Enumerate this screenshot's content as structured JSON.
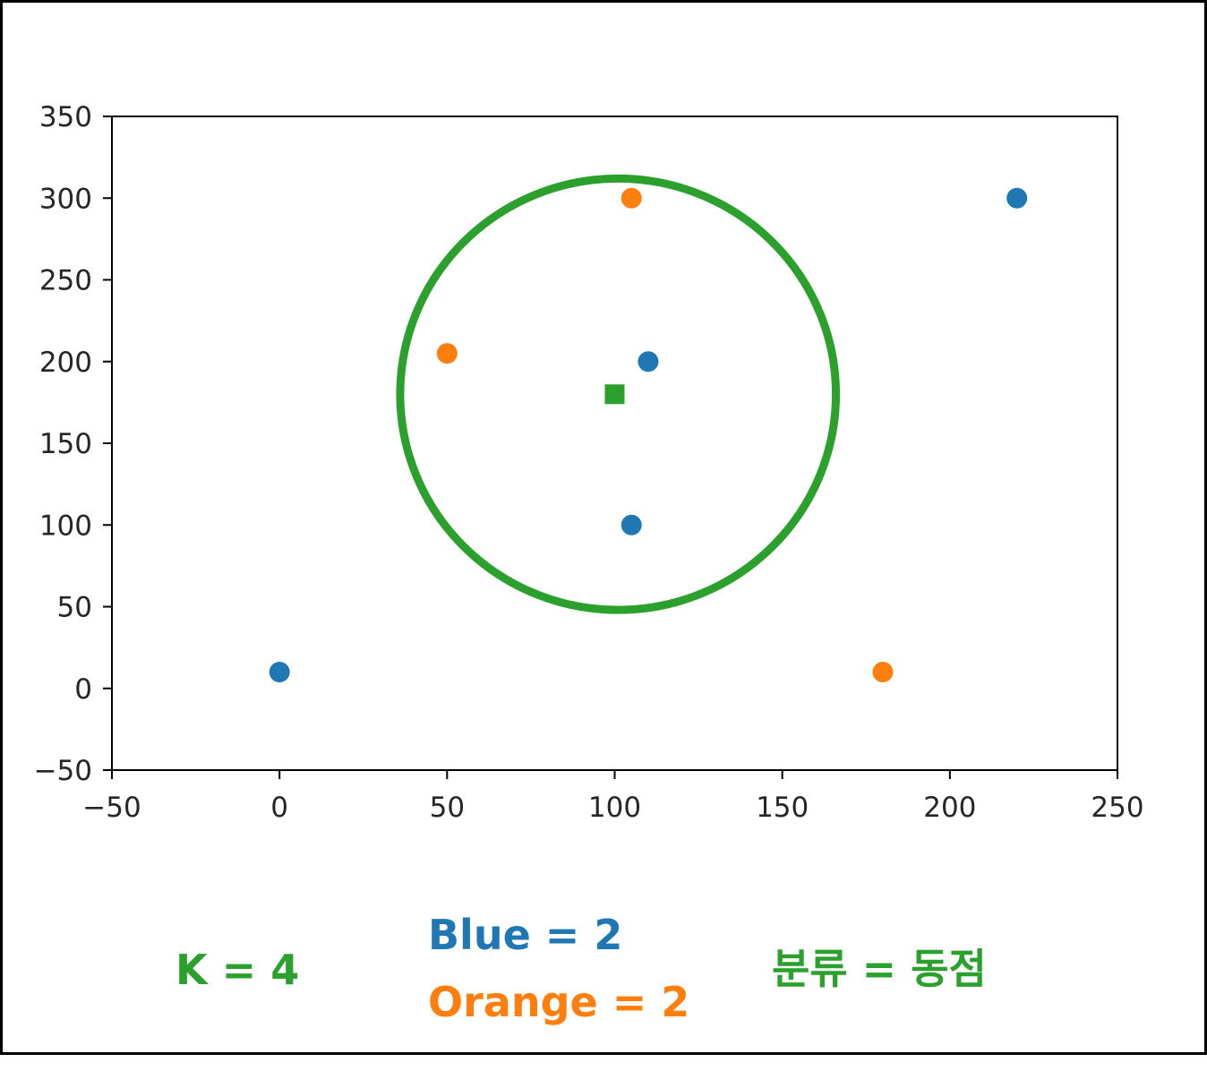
{
  "chart_data": {
    "type": "scatter",
    "title": "",
    "xlabel": "",
    "ylabel": "",
    "xlim": [
      -50,
      250
    ],
    "ylim": [
      -50,
      350
    ],
    "xticks": [
      -50,
      0,
      50,
      100,
      150,
      200,
      250
    ],
    "yticks": [
      -50,
      0,
      50,
      100,
      150,
      200,
      250,
      300,
      350
    ],
    "xtick_labels": [
      "−50",
      "0",
      "50",
      "100",
      "150",
      "200",
      "250"
    ],
    "ytick_labels": [
      "−50",
      "0",
      "50",
      "100",
      "150",
      "200",
      "250",
      "300",
      "350"
    ],
    "grid": false,
    "series": [
      {
        "color": "#1f77b4",
        "marker": "circle",
        "points": [
          [
            0,
            10
          ],
          [
            110,
            200
          ],
          [
            105,
            100
          ],
          [
            220,
            300
          ]
        ]
      },
      {
        "color": "#ff7f0e",
        "marker": "circle",
        "points": [
          [
            50,
            205
          ],
          [
            105,
            300
          ],
          [
            180,
            10
          ]
        ]
      },
      {
        "color": "#2ca02c",
        "marker": "square",
        "points": [
          [
            100,
            180
          ]
        ]
      }
    ],
    "neighborhood_circle": {
      "center": [
        101,
        180
      ],
      "radius_x": 65,
      "radius_y": 132,
      "color": "#2ca02c"
    }
  },
  "annotations": {
    "k": {
      "text": "K = 4",
      "color": "#2ca02c"
    },
    "blue": {
      "text": "Blue = 2",
      "color": "#1f77b4"
    },
    "orange": {
      "text": "Orange = 2",
      "color": "#ff7f0e"
    },
    "result": {
      "text": "분류 = 동점",
      "color": "#2ca02c"
    }
  }
}
